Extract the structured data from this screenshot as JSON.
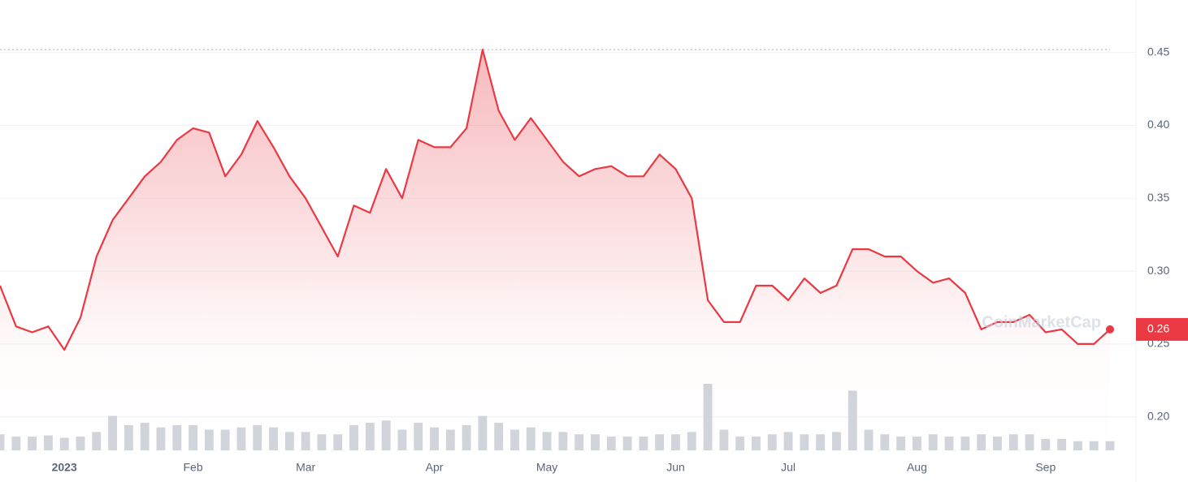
{
  "chart_data": {
    "type": "line",
    "color": "#ea3943",
    "watermark": "CoinMarketCap",
    "price_label": "0.26",
    "categories": [
      null,
      null,
      null,
      null,
      "2023",
      null,
      null,
      null,
      null,
      null,
      null,
      null,
      "Feb",
      null,
      null,
      null,
      null,
      null,
      null,
      "Mar",
      null,
      null,
      null,
      null,
      null,
      null,
      null,
      "Apr",
      null,
      null,
      null,
      null,
      null,
      null,
      "May",
      null,
      null,
      null,
      null,
      null,
      null,
      null,
      "Jun",
      null,
      null,
      null,
      null,
      null,
      null,
      "Jul",
      null,
      null,
      null,
      null,
      null,
      null,
      null,
      "Aug",
      null,
      null,
      null,
      null,
      null,
      null,
      null,
      "Sep",
      null,
      null,
      null,
      null
    ],
    "values": [
      0.29,
      0.262,
      0.258,
      0.262,
      0.246,
      0.268,
      0.31,
      0.335,
      0.35,
      0.365,
      0.375,
      0.39,
      0.398,
      0.395,
      0.365,
      0.38,
      0.403,
      0.385,
      0.365,
      0.35,
      0.33,
      0.31,
      0.345,
      0.34,
      0.37,
      0.35,
      0.39,
      0.385,
      0.385,
      0.398,
      0.452,
      0.41,
      0.39,
      0.405,
      0.39,
      0.375,
      0.365,
      0.37,
      0.372,
      0.365,
      0.365,
      0.38,
      0.37,
      0.35,
      0.28,
      0.265,
      0.265,
      0.29,
      0.29,
      0.28,
      0.295,
      0.285,
      0.29,
      0.315,
      0.315,
      0.31,
      0.31,
      0.3,
      0.292,
      0.295,
      0.285,
      0.26,
      0.265,
      0.265,
      0.27,
      0.258,
      0.26,
      0.25,
      0.25,
      0.26
    ],
    "volume": [
      14,
      12,
      12,
      13,
      11,
      12,
      16,
      30,
      22,
      24,
      20,
      22,
      22,
      18,
      18,
      20,
      22,
      20,
      16,
      16,
      14,
      14,
      22,
      24,
      26,
      18,
      24,
      20,
      18,
      22,
      30,
      24,
      18,
      20,
      16,
      16,
      14,
      14,
      12,
      12,
      12,
      14,
      14,
      16,
      58,
      18,
      12,
      12,
      14,
      16,
      14,
      14,
      16,
      52,
      18,
      14,
      12,
      12,
      14,
      12,
      12,
      14,
      12,
      14,
      14,
      10,
      10,
      8,
      8,
      8
    ],
    "ylim": [
      0.177,
      0.486
    ],
    "yticks": [
      {
        "value": 0.2,
        "label": "0.20"
      },
      {
        "value": 0.25,
        "label": "0.25"
      },
      {
        "value": 0.3,
        "label": "0.30"
      },
      {
        "value": 0.35,
        "label": "0.35"
      },
      {
        "value": 0.4,
        "label": "0.40"
      },
      {
        "value": 0.45,
        "label": "0.45"
      }
    ],
    "grid": true
  }
}
